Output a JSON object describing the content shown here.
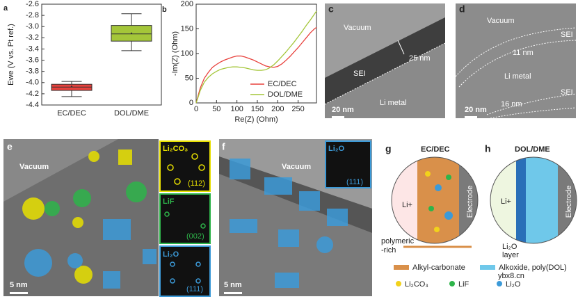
{
  "chart_data": [
    {
      "type": "box",
      "panel_label": "a",
      "y_label": "Ewe (V vs. Pt ref.)",
      "categories": [
        "EC/DEC",
        "DOL/DME"
      ],
      "boxes": [
        {
          "low": -4.25,
          "q1": -4.14,
          "median": -4.08,
          "q3": -4.03,
          "high": -3.98,
          "mean": -4.07,
          "color": "#e8413c"
        },
        {
          "low": -3.43,
          "q1": -3.26,
          "median": -3.13,
          "q3": -2.98,
          "high": -2.77,
          "mean": -3.12,
          "color": "#a4c639"
        }
      ],
      "ylim": [
        -4.4,
        -2.6
      ],
      "yticks": [
        -2.6,
        -2.8,
        {
          "value": -3,
          "label": "-3.0"
        },
        -3.2,
        -3.4,
        -3.6,
        -3.8,
        {
          "value": -4,
          "label": "-4.0"
        },
        -4.2,
        -4.4
      ]
    },
    {
      "type": "line",
      "panel_label": "b",
      "x_label": "Re(Z) (Ohm)",
      "y_label": "-Im(Z) (Ohm)",
      "x": [
        0,
        5,
        10,
        20,
        30,
        40,
        50,
        60,
        70,
        80,
        90,
        100,
        110,
        120,
        130,
        140,
        150,
        160,
        170,
        180,
        190,
        200,
        210,
        220,
        230,
        240,
        250,
        260,
        270,
        280,
        290,
        295
      ],
      "series": [
        {
          "name": "EC/DEC",
          "color": "#e8413c",
          "values": [
            0,
            15,
            30,
            50,
            62,
            72,
            78,
            83,
            87,
            90,
            93,
            95,
            95,
            93,
            90,
            87,
            83,
            79,
            75,
            73,
            72,
            74,
            79,
            86,
            94,
            103,
            112,
            122,
            132,
            142,
            150,
            153
          ]
        },
        {
          "name": "DOL/DME",
          "color": "#a4c639",
          "values": [
            0,
            12,
            25,
            42,
            52,
            59,
            64,
            68,
            70,
            72,
            73,
            73,
            72,
            71,
            69,
            67,
            66,
            66,
            67,
            71,
            77,
            85,
            94,
            103,
            113,
            123,
            134,
            145,
            157,
            168,
            180,
            186
          ]
        }
      ],
      "xlim": [
        0,
        295
      ],
      "ylim": [
        0,
        200
      ],
      "xticks": [
        0,
        50,
        100,
        150,
        200,
        250
      ],
      "yticks": [
        0,
        50,
        100,
        150,
        200
      ],
      "legend": "lower right"
    }
  ],
  "panel_c": {
    "label": "c",
    "vacuum": "Vacuum",
    "thickness": "25 nm",
    "sei": "SEI",
    "metal": "Li metal",
    "scale_bar": "20 nm"
  },
  "panel_d": {
    "label": "d",
    "vacuum": "Vacuum",
    "sei_top": "SEI",
    "thickness_top": "11 nm",
    "metal": "Li metal",
    "sei_bottom": "SEI",
    "thickness_bottom": "16 nm",
    "scale_bar": "20 nm"
  },
  "panel_e": {
    "label": "e",
    "vacuum": "Vacuum",
    "scale_bar": "5 nm",
    "insets": [
      {
        "title": "Li₂CO₃",
        "index": "(112)"
      },
      {
        "title": "LiF",
        "index": "(002)"
      },
      {
        "title": "Li₂O",
        "index": "(111)"
      }
    ]
  },
  "panel_f": {
    "label": "f",
    "vacuum": "Vacuum",
    "scale_bar": "5 nm",
    "inset": {
      "title": "Li₂O",
      "index": "(111)"
    }
  },
  "panel_g": {
    "label": "g",
    "title": "EC/DEC",
    "ion": "Li+",
    "electrode": "Electrode",
    "arrow_label": [
      "polymeric",
      "-rich"
    ]
  },
  "panel_h": {
    "label": "h",
    "title": "DOL/DME",
    "ion": "Li+",
    "electrode": "Electrode",
    "layer_label": [
      "Li₂O",
      "layer"
    ]
  },
  "legend": {
    "alkyl": "Alkyl-carbonate",
    "alkoxide": "Alkoxide, poly(DOL)",
    "li2co3": "Li₂CO₃",
    "lif": "LiF",
    "li2o": "Li₂O"
  },
  "watermark": "ybx8.cn"
}
